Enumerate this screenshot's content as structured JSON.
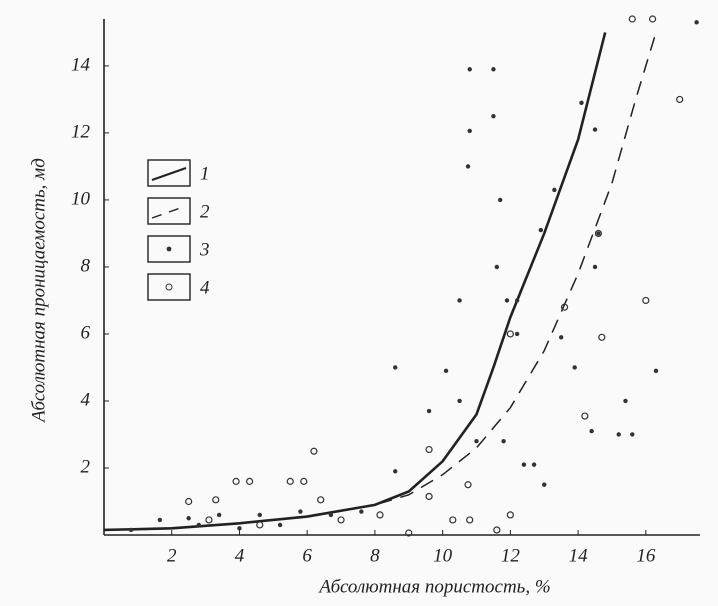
{
  "chart_data": {
    "type": "scatter-line",
    "xlabel": "Абсолютная пористость, %",
    "ylabel": "Абсолютная проницаемость, мд",
    "xlim": [
      0,
      17.6
    ],
    "ylim": [
      0,
      15.4
    ],
    "xticks": [
      2,
      4,
      6,
      8,
      10,
      12,
      14,
      16
    ],
    "yticks": [
      2,
      4,
      6,
      8,
      10,
      12,
      14
    ],
    "series": [
      {
        "name": "1",
        "style": "solid",
        "color": "#222222",
        "x": [
          0,
          2,
          4,
          6,
          8,
          9,
          10,
          11,
          11.5,
          12,
          13,
          14,
          14.8
        ],
        "values": [
          0.15,
          0.2,
          0.35,
          0.55,
          0.9,
          1.3,
          2.2,
          3.6,
          5,
          6.5,
          9,
          11.8,
          15
        ]
      },
      {
        "name": "2",
        "style": "dashed",
        "color": "#222222",
        "x": [
          0,
          2,
          4,
          6,
          8,
          9,
          10,
          11,
          12,
          13,
          14,
          15,
          15.7,
          16.3
        ],
        "values": [
          0.15,
          0.2,
          0.35,
          0.55,
          0.9,
          1.2,
          1.8,
          2.6,
          3.8,
          5.5,
          7.8,
          10.5,
          13,
          15
        ]
      },
      {
        "name": "3",
        "style": "dot",
        "color": "#333333",
        "x": [
          10.8,
          11.5,
          10.8,
          11.5,
          10.75,
          11.7,
          11.6,
          10.5,
          11.9,
          12.2,
          12.2,
          8.6,
          10.1,
          9.6,
          10.5,
          12.9,
          13.3,
          14.1,
          14.5,
          14.6,
          14.5,
          13.9,
          13.5,
          15.4,
          16.3,
          14.4,
          15.2,
          15.6,
          17.5,
          12.4,
          12.7,
          13,
          11.8,
          11,
          8.6,
          0.8,
          1.65,
          2.5,
          3.4,
          4.6,
          5.8,
          6.7,
          7.6,
          2.8,
          4,
          5.2
        ],
        "values": [
          13.9,
          13.9,
          12.06,
          12.5,
          11,
          10,
          8,
          7,
          7,
          7,
          6,
          5,
          4.9,
          3.7,
          4,
          9.1,
          10.3,
          12.9,
          12.1,
          9,
          8,
          5,
          5.9,
          4,
          4.9,
          3.1,
          3,
          3,
          15.3,
          2.1,
          2.1,
          1.5,
          2.8,
          2.8,
          1.9,
          0.15,
          0.45,
          0.5,
          0.6,
          0.6,
          0.7,
          0.6,
          0.7,
          0.3,
          0.2,
          0.3
        ]
      },
      {
        "name": "4",
        "style": "circle",
        "color": "#333333",
        "x": [
          2.5,
          3.3,
          3.9,
          4.3,
          5.5,
          5.9,
          6.2,
          6.4,
          9.6,
          9.6,
          10.75,
          10.3,
          10.8,
          11.6,
          12,
          12,
          13.6,
          14.6,
          14.7,
          14.2,
          16,
          17,
          15.6,
          16.2,
          3.1,
          4.6,
          7,
          8.15,
          9
        ],
        "values": [
          1,
          1.05,
          1.6,
          1.6,
          1.6,
          1.6,
          2.5,
          1.05,
          2.55,
          1.15,
          1.5,
          0.45,
          0.45,
          0.15,
          0.6,
          6,
          6.8,
          9,
          5.9,
          3.55,
          7,
          13,
          15.4,
          15.4,
          0.45,
          0.3,
          0.45,
          0.6,
          0.06
        ]
      }
    ]
  }
}
